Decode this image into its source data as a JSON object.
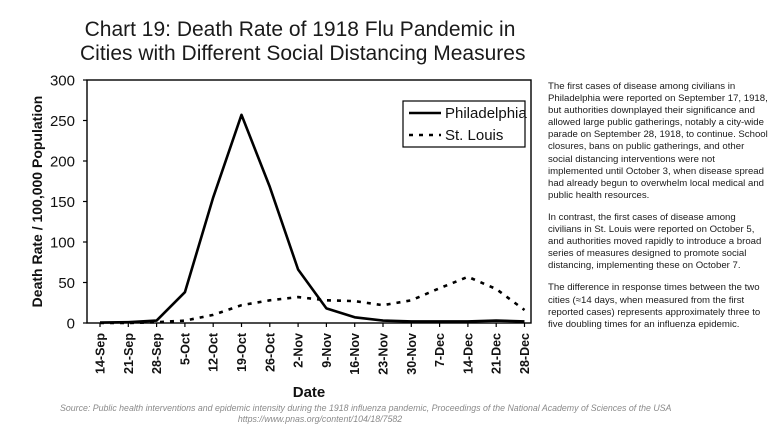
{
  "title_lines": [
    "Chart 19: Death Rate of 1918 Flu Pandemic in",
    "Cities with Different Social Distancing Measures"
  ],
  "side_paragraphs": [
    "The first cases of disease among civilians in Philadelphia were reported on September 17, 1918, but authorities downplayed their significance and allowed large public gatherings, notably a city-wide parade on September 28, 1918, to continue. School closures, bans on public gatherings, and other social distancing interventions were not implemented until October 3, when disease spread had already begun to overwhelm local medical and public health resources.",
    "In contrast, the first cases of disease among civilians in St. Louis were reported on October 5, and authorities moved rapidly to introduce a broad series of measures designed to promote social distancing, implementing these on October 7.",
    "The difference in response times between the two cities (≈14 days, when measured from the first reported cases) represents approximately three to five doubling times for an influenza epidemic."
  ],
  "source_lines": [
    "Source: Public health interventions and epidemic intensity during the 1918 influenza pandemic, Proceedings of the National Academy of Sciences of the USA",
    "https://www.pnas.org/content/104/18/7582"
  ],
  "chart_data": {
    "type": "line",
    "title": "Chart 19: Death Rate of 1918 Flu Pandemic in Cities with Different Social Distancing Measures",
    "xlabel": "Date",
    "ylabel": "Death Rate / 100,000 Population",
    "categories": [
      "14-Sep",
      "21-Sep",
      "28-Sep",
      "5-Oct",
      "12-Oct",
      "19-Oct",
      "26-Oct",
      "2-Nov",
      "9-Nov",
      "16-Nov",
      "23-Nov",
      "30-Nov",
      "7-Dec",
      "14-Dec",
      "21-Dec",
      "28-Dec"
    ],
    "ylim": [
      0,
      300
    ],
    "yticks": [
      0,
      50,
      100,
      150,
      200,
      250,
      300
    ],
    "grid": false,
    "legend_position": "top-right",
    "series": [
      {
        "name": "Philadelphia",
        "style": "solid",
        "color": "#000000",
        "values": [
          0.5,
          1,
          3,
          38,
          155,
          257,
          168,
          66,
          18,
          7,
          3,
          2,
          2,
          2,
          3,
          2
        ]
      },
      {
        "name": "St. Louis",
        "style": "dashed",
        "color": "#000000",
        "values": [
          0,
          0,
          1,
          3,
          10,
          22,
          28,
          32,
          28,
          27,
          22,
          28,
          43,
          57,
          42,
          16
        ]
      }
    ]
  }
}
